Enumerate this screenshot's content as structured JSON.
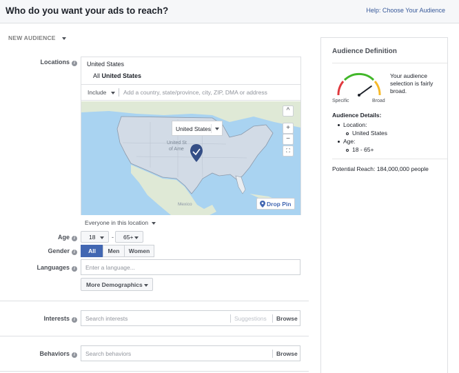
{
  "header": {
    "title": "Who do you want your ads to reach?",
    "help_link": "Help: Choose Your Audience"
  },
  "audience_menu": {
    "label": "NEW AUDIENCE"
  },
  "locations": {
    "label": "Locations",
    "country": "United States",
    "all_prefix": "All",
    "all_value": "United States",
    "include_label": "Include",
    "placeholder": "Add a country, state/province, city, ZIP, DMA or address",
    "map": {
      "popup_label": "United States",
      "drop_pin_label": "Drop Pin",
      "map_text_us_1": "United St",
      "map_text_us_2": "of Ame",
      "map_text_mexico": "Mexico",
      "controls": [
        "^",
        "+",
        "−",
        "⛶"
      ]
    },
    "scope": "Everyone in this location"
  },
  "age": {
    "label": "Age",
    "min": "18",
    "dash": "-",
    "max": "65+"
  },
  "gender": {
    "label": "Gender",
    "options": [
      "All",
      "Men",
      "Women"
    ],
    "selected": "All"
  },
  "languages": {
    "label": "Languages",
    "placeholder": "Enter a language..."
  },
  "more_demographics": {
    "label": "More Demographics"
  },
  "interests": {
    "label": "Interests",
    "placeholder": "Search interests",
    "suggestions": "Suggestions",
    "browse": "Browse"
  },
  "behaviors": {
    "label": "Behaviors",
    "placeholder": "Search behaviors",
    "browse": "Browse"
  },
  "audience_definition": {
    "title": "Audience Definition",
    "specific": "Specific",
    "broad": "Broad",
    "gauge_level": 0.8,
    "description": "Your audience selection is fairly broad.",
    "details_heading": "Audience Details:",
    "location_label": "Location:",
    "location_value": "United States",
    "age_label": "Age:",
    "age_value": "18 - 65+",
    "potential_reach": "Potential Reach: 184,000,000 people"
  },
  "colors": {
    "accent": "#4267b2",
    "gauge_red": "#e0393e",
    "gauge_yellow": "#f7b928",
    "gauge_green": "#42b72a"
  }
}
